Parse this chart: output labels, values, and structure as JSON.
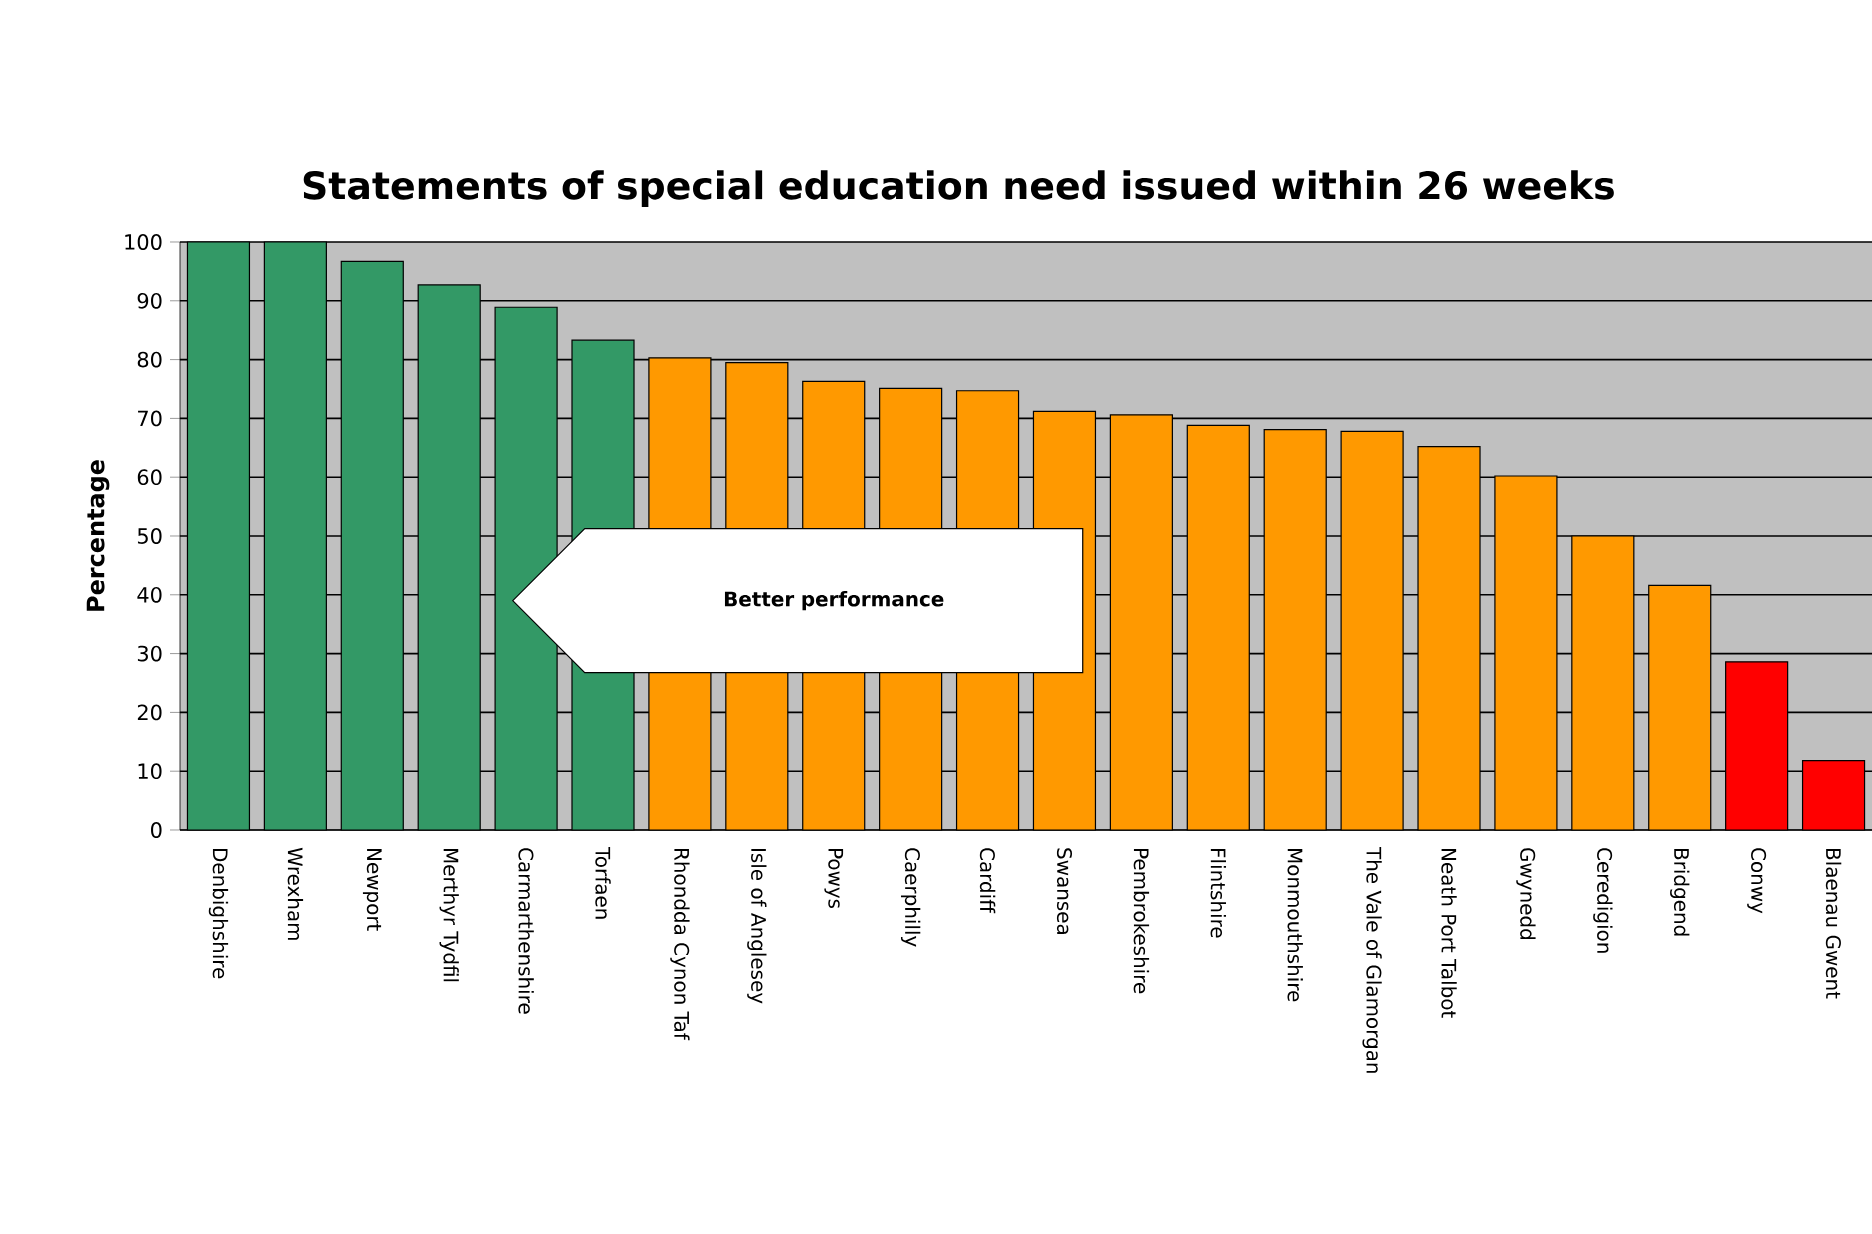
{
  "chart_data": {
    "type": "bar",
    "title": "Statements of special education need issued within 26 weeks",
    "ylabel": "Percentage",
    "categories": [
      "Denbighshire",
      "Wrexham",
      "Newport",
      "Merthyr Tydfil",
      "Carmarthenshire",
      "Torfaen",
      "Rhondda Cynon Taf",
      "Isle of Anglesey",
      "Powys",
      "Caerphilly",
      "Cardiff",
      "Swansea",
      "Pembrokeshire",
      "Flintshire",
      "Monmouthshire",
      "The Vale of Glamorgan",
      "Neath Port Talbot",
      "Gwynedd",
      "Ceredigion",
      "Bridgend",
      "Conwy",
      "Blaenau Gwent"
    ],
    "values": [
      100,
      100,
      96.7,
      92.7,
      88.9,
      83.3,
      80.3,
      79.5,
      76.3,
      75.1,
      74.7,
      71.2,
      70.6,
      68.8,
      68.1,
      67.8,
      65.2,
      60.2,
      50.0,
      41.6,
      28.6,
      11.8
    ],
    "colors": [
      "#339966",
      "#339966",
      "#339966",
      "#339966",
      "#339966",
      "#339966",
      "#ff9900",
      "#ff9900",
      "#ff9900",
      "#ff9900",
      "#ff9900",
      "#ff9900",
      "#ff9900",
      "#ff9900",
      "#ff9900",
      "#ff9900",
      "#ff9900",
      "#ff9900",
      "#ff9900",
      "#ff9900",
      "#ff0000",
      "#ff0000"
    ],
    "ylim": [
      0,
      100
    ],
    "yticks": [
      0,
      10,
      20,
      30,
      40,
      50,
      60,
      70,
      80,
      90,
      100
    ],
    "grid": "y",
    "annotations": [
      "Better performance"
    ]
  }
}
